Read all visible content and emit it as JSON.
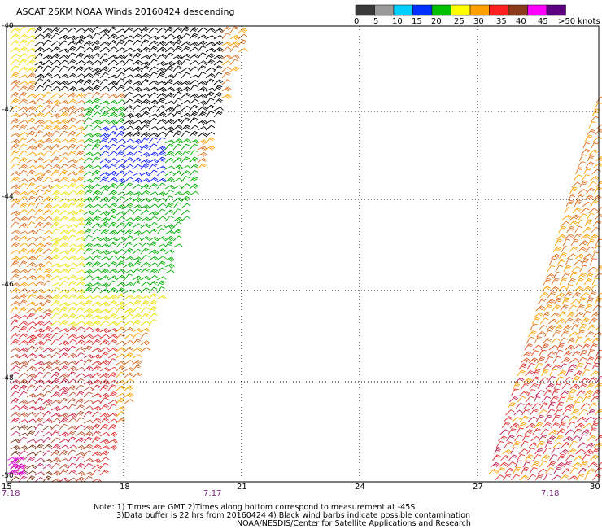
{
  "title": "ASCAT 25KM NOAA Winds 20160424 descending",
  "legend": {
    "labels": [
      "0",
      "5",
      "10",
      "15",
      "20",
      "25",
      "30",
      "35",
      "40",
      "45",
      ">50 knots"
    ],
    "colors": [
      "#3a3a3a",
      "#9a9a9a",
      "#00cfff",
      "#0030ff",
      "#00c000",
      "#ffff00",
      "#ffa000",
      "#ff2020",
      "#8b3a1a",
      "#ff00ff",
      "#5a0080"
    ]
  },
  "y_ticks": [
    "-40",
    "-42",
    "-44",
    "-46",
    "-48",
    "-50"
  ],
  "x_ticks": [
    "15",
    "18",
    "21",
    "24",
    "27",
    "30"
  ],
  "times": [
    "7:18",
    "7:17",
    "7:18"
  ],
  "notes": [
    "Note: 1) Times are GMT 2)Times along bottom correspond to measurement at -45S",
    "3)Data buffer is 22 hrs from 20160424 4) Black wind barbs indicate possible contamination",
    "NOAA/NESDIS/Center for Satellite Applications and Research"
  ]
}
